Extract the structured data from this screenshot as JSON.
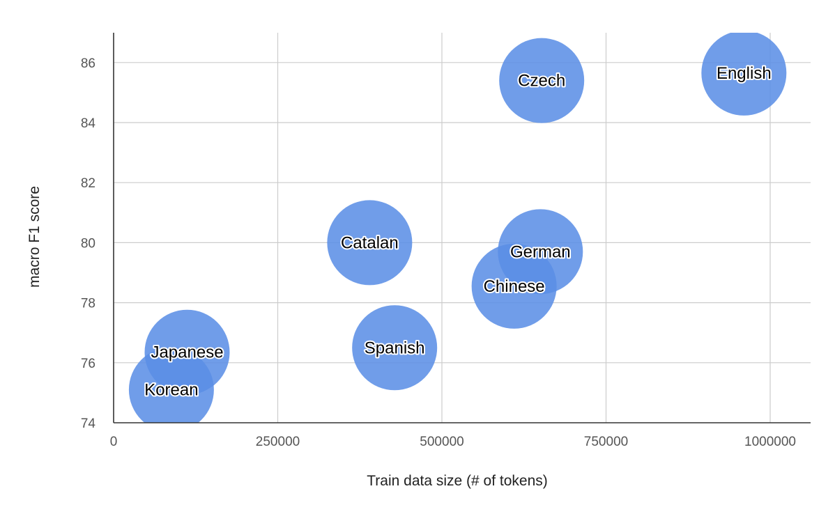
{
  "chart_data": {
    "type": "scatter",
    "subtype": "bubble",
    "xlabel": "Train data size (# of tokens)",
    "ylabel": "macro F1 score",
    "xlim": [
      0,
      1000000
    ],
    "ylim": [
      74,
      87
    ],
    "xticks": [
      0,
      250000,
      500000,
      750000,
      1000000
    ],
    "yticks": [
      74,
      76,
      78,
      80,
      82,
      84,
      86
    ],
    "grid": true,
    "bubble_color": "#5b8ee6",
    "points": [
      {
        "label": "Czech",
        "x": 652000,
        "y": 85.4
      },
      {
        "label": "English",
        "x": 960000,
        "y": 85.65
      },
      {
        "label": "Catalan",
        "x": 390000,
        "y": 80.0
      },
      {
        "label": "German",
        "x": 650000,
        "y": 79.7
      },
      {
        "label": "Chinese",
        "x": 610000,
        "y": 78.55
      },
      {
        "label": "Spanish",
        "x": 428000,
        "y": 76.5
      },
      {
        "label": "Japanese",
        "x": 112000,
        "y": 76.35
      },
      {
        "label": "Korean",
        "x": 88000,
        "y": 75.1
      }
    ]
  }
}
